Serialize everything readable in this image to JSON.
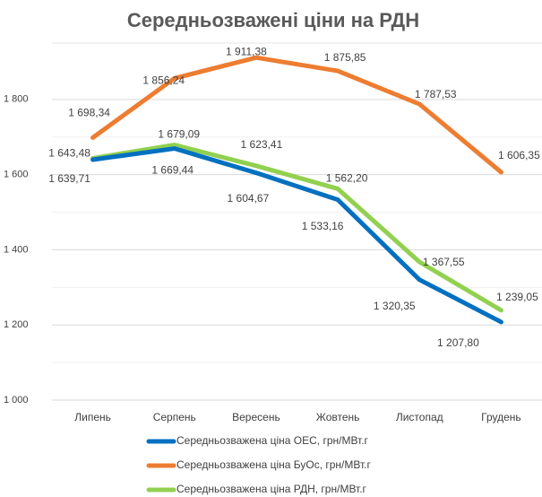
{
  "chart_data": {
    "type": "line",
    "title": "Середньозважені ціни на РДН",
    "categories": [
      "Липень",
      "Серпень",
      "Вересень",
      "Жовтень",
      "Листопад",
      "Грудень"
    ],
    "series": [
      {
        "name": "Середньозважена ціна ОЕС, грн/МВт.г",
        "color": "#0070c0",
        "values": [
          1639.71,
          1669.44,
          1604.67,
          1533.16,
          1320.35,
          1207.8
        ],
        "value_labels": [
          "1 639,71",
          "1 669,44",
          "1 604,67",
          "1 533,16",
          "1 320,35",
          "1 207,80"
        ]
      },
      {
        "name": "Середньозважена ціна БуОс, грн/МВт.г",
        "color": "#ed7d31",
        "values": [
          1698.34,
          1856.24,
          1911.38,
          1875.85,
          1787.53,
          1606.35
        ],
        "value_labels": [
          "1 698,34",
          "1 856,24",
          "1 911,38",
          "1 875,85",
          "1 787,53",
          "1 606,35"
        ]
      },
      {
        "name": "Середньозважена ціна РДН, грн/МВт.г",
        "color": "#92d050",
        "values": [
          1643.48,
          1679.09,
          1623.41,
          1562.2,
          1367.55,
          1239.05
        ],
        "value_labels": [
          "1 643,48",
          "1 679,09",
          "1 623,41",
          "1 562,20",
          "1 367,55",
          "1 239,05"
        ]
      }
    ],
    "ylim": [
      1000,
      1950
    ],
    "yticks": [
      {
        "value": 1000,
        "label": "1 000"
      },
      {
        "value": 1200,
        "label": "1 200"
      },
      {
        "value": 1400,
        "label": "1 400"
      },
      {
        "value": 1600,
        "label": "1 600"
      },
      {
        "value": 1800,
        "label": "1 800"
      }
    ],
    "grid": true
  }
}
